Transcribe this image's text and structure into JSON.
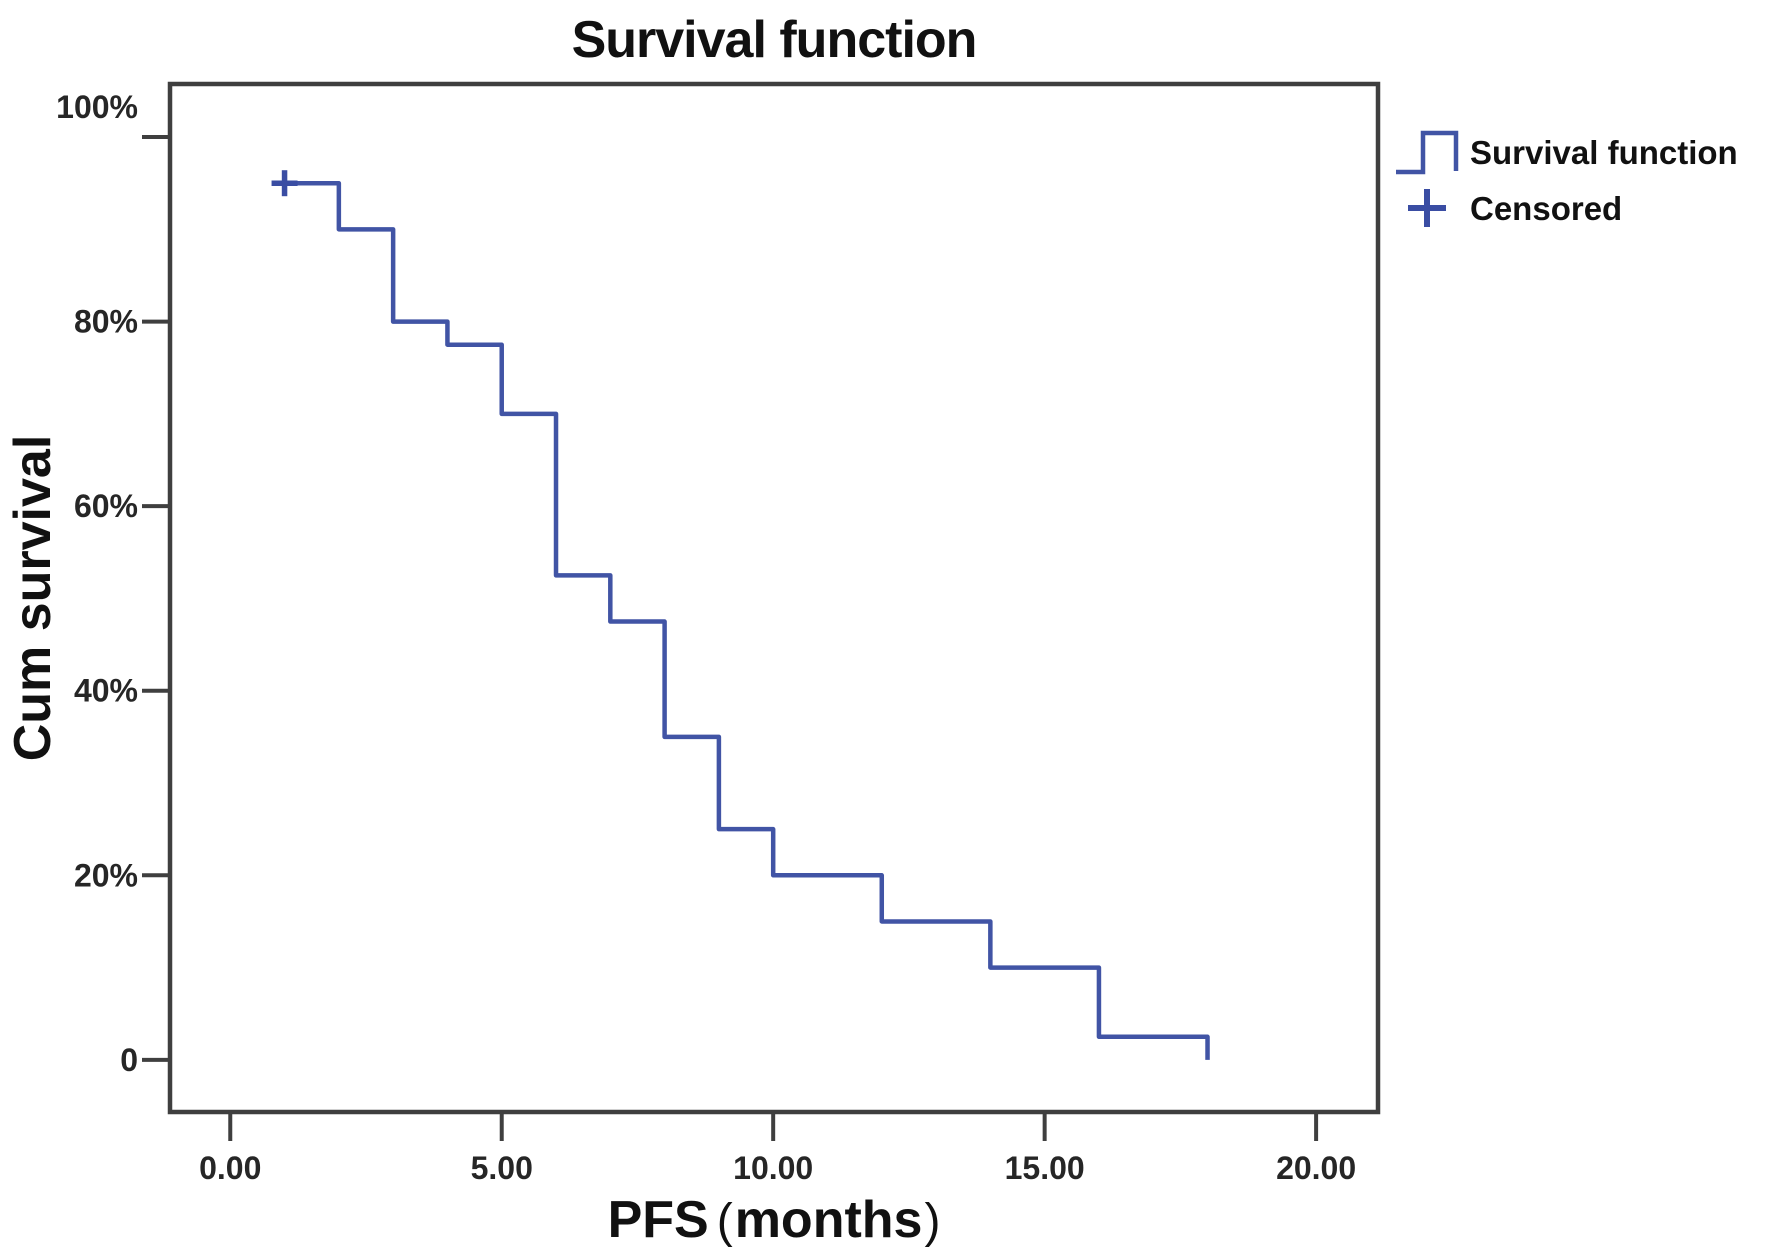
{
  "figure": {
    "background": "#ffffff"
  },
  "chart_data": {
    "type": "line",
    "subtype": "kaplan-meier-step-survival",
    "title": "Survival function",
    "ylabel": "Cum survival",
    "xlabel": {
      "name": "PFS",
      "open_paren": "(",
      "unit": "months",
      "close_paren": ")"
    },
    "x_ticks": [
      {
        "label": "0.00",
        "value": 0
      },
      {
        "label": "5.00",
        "value": 5
      },
      {
        "label": "10.00",
        "value": 10
      },
      {
        "label": "15.00",
        "value": 15
      },
      {
        "label": "20.00",
        "value": 20
      }
    ],
    "y_ticks": [
      {
        "label": "0",
        "value": 0,
        "dy": 0
      },
      {
        "label": "20%",
        "value": 20,
        "dy": 0
      },
      {
        "label": "40%",
        "value": 40,
        "dy": 0
      },
      {
        "label": "60%",
        "value": 60,
        "dy": 0
      },
      {
        "label": "80%",
        "value": 80,
        "dy": 0
      },
      {
        "label": "100%",
        "value": 100,
        "dy": -30
      }
    ],
    "xlim": [
      -1.11,
      21.14
    ],
    "ylim": [
      -5.65,
      105.75
    ],
    "grid": false,
    "axis_color": "#3f3f3f",
    "legend_position": "top-right-outside",
    "series": [
      {
        "name": "Survival function",
        "marker": "step-line",
        "color": "#4154a5",
        "start": {
          "x": 1,
          "y": 95
        },
        "steps": [
          {
            "x": 2,
            "y": 90
          },
          {
            "x": 3,
            "y": 80
          },
          {
            "x": 4,
            "y": 77.5
          },
          {
            "x": 5,
            "y": 70
          },
          {
            "x": 6,
            "y": 52.5
          },
          {
            "x": 7,
            "y": 47.5
          },
          {
            "x": 8,
            "y": 35
          },
          {
            "x": 9,
            "y": 25
          },
          {
            "x": 10,
            "y": 20
          },
          {
            "x": 12,
            "y": 15
          },
          {
            "x": 14,
            "y": 10
          },
          {
            "x": 16,
            "y": 2.5
          },
          {
            "x": 18,
            "y": 0
          }
        ]
      }
    ],
    "censored_points": [
      {
        "x": 1,
        "y": 95
      }
    ],
    "censored_color": "#3a4da3",
    "legend": [
      {
        "label": "Survival function",
        "marker": "step-line"
      },
      {
        "label": "Censored",
        "marker": "plus"
      }
    ]
  }
}
